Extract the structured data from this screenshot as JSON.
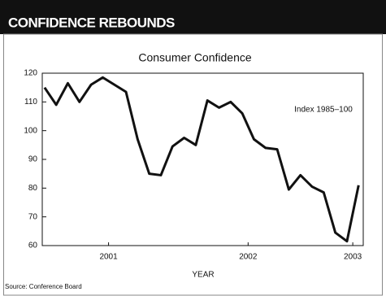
{
  "header": {
    "title": "CONFIDENCE REBOUNDS"
  },
  "chart_data": {
    "type": "line",
    "title": "Consumer Confidence",
    "annotation": "Index 1985–100",
    "xlabel": "YEAR",
    "source": "Source: Conference Board",
    "categories": [
      null,
      null,
      null,
      null,
      null,
      null,
      null,
      null,
      null,
      null,
      null,
      null,
      null,
      null,
      null,
      null,
      null,
      null,
      null,
      null,
      null,
      null,
      null,
      null,
      null,
      null,
      null,
      null
    ],
    "series": [
      {
        "name": "Consumer Confidence",
        "color": "#111111",
        "values": [
          115,
          109,
          116.5,
          110,
          116,
          118.5,
          116,
          113.5,
          97,
          85,
          84.5,
          94.5,
          97.5,
          95,
          110.5,
          108,
          110,
          106,
          97,
          94,
          93.5,
          79.5,
          84.5,
          80.5,
          78.5,
          64.5,
          61.5,
          81
        ]
      }
    ],
    "xlim": [
      -0.2,
      27.4
    ],
    "xticks": [
      {
        "value": 5.5,
        "label": "2001"
      },
      {
        "value": 17.5,
        "label": "2002"
      },
      {
        "value": 26.5,
        "label": "2003"
      }
    ],
    "ylim": [
      60,
      120
    ],
    "yticks": [
      60,
      70,
      80,
      90,
      100,
      110,
      120
    ],
    "grid": false
  }
}
